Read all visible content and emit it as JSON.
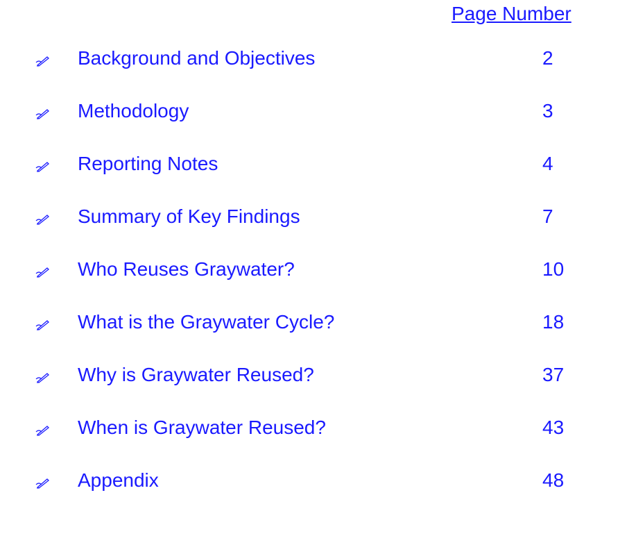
{
  "header": {
    "page_number_label": "Page Number"
  },
  "entries": [
    {
      "title": "Background and Objectives",
      "page": 2
    },
    {
      "title": "Methodology",
      "page": 3
    },
    {
      "title": "Reporting Notes",
      "page": 4
    },
    {
      "title": "Summary of Key Findings",
      "page": 7
    },
    {
      "title": "Who Reuses Graywater?",
      "page": 10
    },
    {
      "title": "What is the Graywater Cycle?",
      "page": 18
    },
    {
      "title": "Why is Graywater Reused?",
      "page": 37
    },
    {
      "title": "When is Graywater Reused?",
      "page": 43
    },
    {
      "title": "Appendix",
      "page": 48
    }
  ]
}
